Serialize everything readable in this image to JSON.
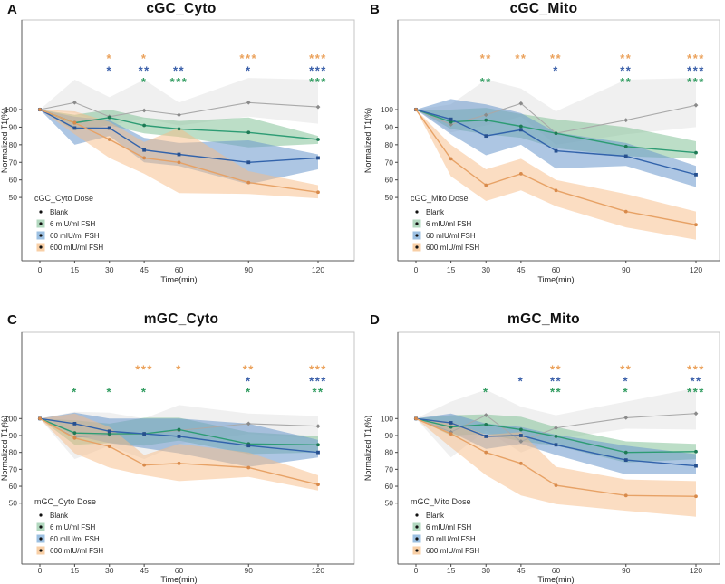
{
  "figure_title": "",
  "legend_items": [
    "Blank",
    "6 mIU/ml FSH",
    "60 mIU/ml FSH",
    "600 mIU/ml FSH"
  ],
  "colors": {
    "blank": {
      "line": "#a9a9a9",
      "marker": "#8a8a8a",
      "fill": "rgba(187,187,187,0.22)",
      "swatch": "",
      "star": ""
    },
    "green": {
      "line": "#2d9c74",
      "marker": "#1e7a55",
      "fill": "rgba(122,189,144,0.50)",
      "swatch": "#b2d8bf",
      "star": "#349d62"
    },
    "blue": {
      "line": "#3263ab",
      "marker": "#27508f",
      "fill": "rgba(106,152,204,0.55)",
      "swatch": "#9cc0e2",
      "star": "#3a5fa9"
    },
    "orange": {
      "line": "#e7a266",
      "marker": "#d88a4b",
      "fill": "rgba(247,188,133,0.50)",
      "swatch": "#f8cfa6",
      "star": "#eba25c"
    }
  },
  "chart_data": [
    {
      "type": "line",
      "panel_label": "A",
      "title": "cGC_Cyto",
      "legend_title": "cGC_Cyto Dose",
      "xlabel": "Time(min)",
      "ylabel": "Normalized T1(%)",
      "x": [
        0,
        15,
        30,
        45,
        60,
        90,
        120
      ],
      "y_ticks": [
        100,
        90,
        80,
        70,
        60,
        50
      ],
      "series": [
        {
          "name": "Blank",
          "color_key": "blank",
          "values": [
            100,
            104,
            96,
            99.5,
            97,
            104,
            101.5
          ],
          "upper": [
            100,
            117,
            107,
            117,
            104,
            118,
            117
          ],
          "lower": [
            100,
            98,
            91,
            95,
            91,
            96,
            92
          ]
        },
        {
          "name": "6 mIU/ml FSH",
          "color_key": "green",
          "values": [
            100,
            92.5,
            95.5,
            91,
            89,
            87,
            83
          ],
          "upper": [
            100,
            97,
            100,
            95.5,
            93.5,
            95.5,
            85
          ],
          "lower": [
            100,
            88,
            91,
            86.5,
            84.5,
            78.5,
            80.5
          ]
        },
        {
          "name": "60 mIU/ml FSH",
          "color_key": "blue",
          "values": [
            100,
            89.5,
            89.5,
            77,
            74.5,
            70,
            72.5
          ],
          "upper": [
            100,
            96,
            94,
            84,
            81,
            82.5,
            74.5
          ],
          "lower": [
            100,
            80,
            85,
            70,
            68,
            57.5,
            66
          ]
        },
        {
          "name": "600 mIU/ml FSH",
          "color_key": "orange",
          "values": [
            100,
            92.5,
            83,
            72.5,
            70,
            58.5,
            53
          ],
          "upper": [
            100,
            99,
            93,
            81.5,
            89.5,
            65,
            57
          ],
          "lower": [
            100,
            86,
            72.5,
            63.5,
            52.5,
            52,
            49.5
          ]
        }
      ],
      "significance": [
        {
          "x": 30,
          "600": "*",
          "60": "*",
          "6": ""
        },
        {
          "x": 45,
          "600": "*",
          "60": "**",
          "6": "*"
        },
        {
          "x": 60,
          "600": "",
          "60": "**",
          "6": "***"
        },
        {
          "x": 90,
          "600": "***",
          "60": "*",
          "6": ""
        },
        {
          "x": 120,
          "600": "***",
          "60": "***",
          "6": "***"
        }
      ]
    },
    {
      "type": "line",
      "panel_label": "B",
      "title": "cGC_Mito",
      "legend_title": "cGC_Mito Dose",
      "xlabel": "Time(min)",
      "ylabel": "Normalized T1(%)",
      "x": [
        0,
        15,
        30,
        45,
        60,
        90,
        120
      ],
      "y_ticks": [
        100,
        90,
        80,
        70,
        60,
        50
      ],
      "series": [
        {
          "name": "Blank",
          "color_key": "blank",
          "values": [
            100,
            91.5,
            97,
            103.5,
            86.5,
            94,
            102.5
          ],
          "upper": [
            100,
            103,
            117,
            112,
            99,
            117,
            118
          ],
          "lower": [
            100,
            87,
            91,
            96,
            80,
            86,
            90
          ]
        },
        {
          "name": "6 mIU/ml FSH",
          "color_key": "green",
          "values": [
            100,
            93,
            94,
            90.5,
            86.5,
            79,
            75.5
          ],
          "upper": [
            100,
            100,
            101,
            97.5,
            94.5,
            90,
            82
          ],
          "lower": [
            100,
            89,
            86,
            84,
            78,
            73.5,
            72
          ]
        },
        {
          "name": "60 mIU/ml FSH",
          "color_key": "blue",
          "values": [
            100,
            94.5,
            85,
            88.5,
            76.5,
            73.5,
            63
          ],
          "upper": [
            100,
            106,
            103,
            98,
            87,
            81,
            68
          ],
          "lower": [
            100,
            86,
            74,
            80,
            66.5,
            68,
            56
          ]
        },
        {
          "name": "600 mIU/ml FSH",
          "color_key": "orange",
          "values": [
            100,
            72,
            57,
            63.5,
            54,
            42,
            34.5
          ],
          "upper": [
            100,
            80,
            66,
            72,
            60,
            52,
            42
          ],
          "lower": [
            100,
            62,
            48,
            54,
            45,
            33,
            26
          ]
        }
      ],
      "significance": [
        {
          "x": 30,
          "600": "**",
          "60": "",
          "6": "**"
        },
        {
          "x": 45,
          "600": "**",
          "60": "",
          "6": ""
        },
        {
          "x": 60,
          "600": "**",
          "60": "*",
          "6": ""
        },
        {
          "x": 90,
          "600": "**",
          "60": "**",
          "6": "**"
        },
        {
          "x": 120,
          "600": "***",
          "60": "***",
          "6": "***"
        }
      ]
    },
    {
      "type": "line",
      "panel_label": "C",
      "title": "mGC_Cyto",
      "legend_title": "mGC_Cyto Dose",
      "xlabel": "Time(min)",
      "ylabel": "Normalized T1(%)",
      "x": [
        0,
        15,
        30,
        45,
        60,
        90,
        120
      ],
      "y_ticks": [
        100,
        90,
        80,
        70,
        60,
        50
      ],
      "series": [
        {
          "name": "Blank",
          "color_key": "blank",
          "values": [
            100,
            89,
            90.5,
            91,
            93,
            97,
            95.5
          ],
          "upper": [
            100,
            104,
            103.5,
            100,
            108,
            103,
            101.5
          ],
          "lower": [
            100,
            76,
            84,
            76,
            85,
            91,
            88
          ]
        },
        {
          "name": "6 mIU/ml FSH",
          "color_key": "green",
          "values": [
            100,
            91.5,
            91,
            91,
            93.5,
            85,
            84.5
          ],
          "upper": [
            100,
            99,
            97,
            100.5,
            100.5,
            92,
            89.5
          ],
          "lower": [
            100,
            84.5,
            85.5,
            84,
            87,
            79,
            80
          ]
        },
        {
          "name": "60 mIU/ml FSH",
          "color_key": "blue",
          "values": [
            100,
            97,
            92.5,
            91,
            89.5,
            84,
            80
          ],
          "upper": [
            100,
            103.5,
            100,
            100,
            100,
            97,
            87.5
          ],
          "lower": [
            100,
            90,
            85.5,
            82.5,
            79.5,
            71.5,
            77
          ]
        },
        {
          "name": "600 mIU/ml FSH",
          "color_key": "orange",
          "values": [
            100,
            88.5,
            83.5,
            72.5,
            73.5,
            71,
            61
          ],
          "upper": [
            100,
            103,
            95,
            78.5,
            85,
            80,
            66.5
          ],
          "lower": [
            100,
            79.5,
            71,
            66.5,
            63,
            65.5,
            57.5
          ]
        }
      ],
      "significance": [
        {
          "x": 15,
          "600": "",
          "60": "",
          "6": "*"
        },
        {
          "x": 30,
          "600": "",
          "60": "",
          "6": "*"
        },
        {
          "x": 45,
          "600": "***",
          "60": "",
          "6": "*"
        },
        {
          "x": 60,
          "600": "*",
          "60": "",
          "6": ""
        },
        {
          "x": 90,
          "600": "**",
          "60": "*",
          "6": "*"
        },
        {
          "x": 120,
          "600": "***",
          "60": "***",
          "6": "**"
        }
      ]
    },
    {
      "type": "line",
      "panel_label": "D",
      "title": "mGC_Mito",
      "legend_title": "mGC_Mito Dose",
      "xlabel": "Time(min)",
      "ylabel": "Normalized T1(%)",
      "x": [
        0,
        15,
        30,
        45,
        60,
        90,
        120
      ],
      "y_ticks": [
        100,
        90,
        80,
        70,
        60,
        50
      ],
      "series": [
        {
          "name": "Blank",
          "color_key": "blank",
          "values": [
            100,
            92,
            102,
            86.5,
            94.5,
            100.5,
            103
          ],
          "upper": [
            100,
            110,
            117,
            107,
            102,
            110,
            118
          ],
          "lower": [
            100,
            77,
            93,
            80,
            88,
            94,
            93.5
          ]
        },
        {
          "name": "6 mIU/ml FSH",
          "color_key": "green",
          "values": [
            100,
            95,
            96.5,
            93.5,
            89.5,
            80,
            80.5
          ],
          "upper": [
            100,
            102,
            102.5,
            101,
            95,
            86.5,
            85
          ],
          "lower": [
            100,
            90,
            91,
            86.5,
            84,
            74,
            76
          ]
        },
        {
          "name": "60 mIU/ml FSH",
          "color_key": "blue",
          "values": [
            100,
            97.5,
            89.5,
            90,
            84.5,
            75.5,
            72
          ],
          "upper": [
            100,
            103,
            97,
            95,
            90.5,
            84,
            79
          ],
          "lower": [
            100,
            92,
            82,
            85,
            78.5,
            67,
            67.5
          ]
        },
        {
          "name": "600 mIU/ml FSH",
          "color_key": "orange",
          "values": [
            100,
            91,
            80,
            73.5,
            60.5,
            54.5,
            54
          ],
          "upper": [
            100,
            98,
            90.5,
            92,
            71.5,
            64,
            63
          ],
          "lower": [
            100,
            83,
            66.5,
            54.5,
            49.5,
            45.5,
            42
          ]
        }
      ],
      "significance": [
        {
          "x": 30,
          "600": "",
          "60": "",
          "6": "*"
        },
        {
          "x": 45,
          "600": "",
          "60": "*",
          "6": ""
        },
        {
          "x": 60,
          "600": "**",
          "60": "**",
          "6": "**"
        },
        {
          "x": 90,
          "600": "**",
          "60": "*",
          "6": "*"
        },
        {
          "x": 120,
          "600": "***",
          "60": "**",
          "6": "***"
        }
      ]
    }
  ]
}
